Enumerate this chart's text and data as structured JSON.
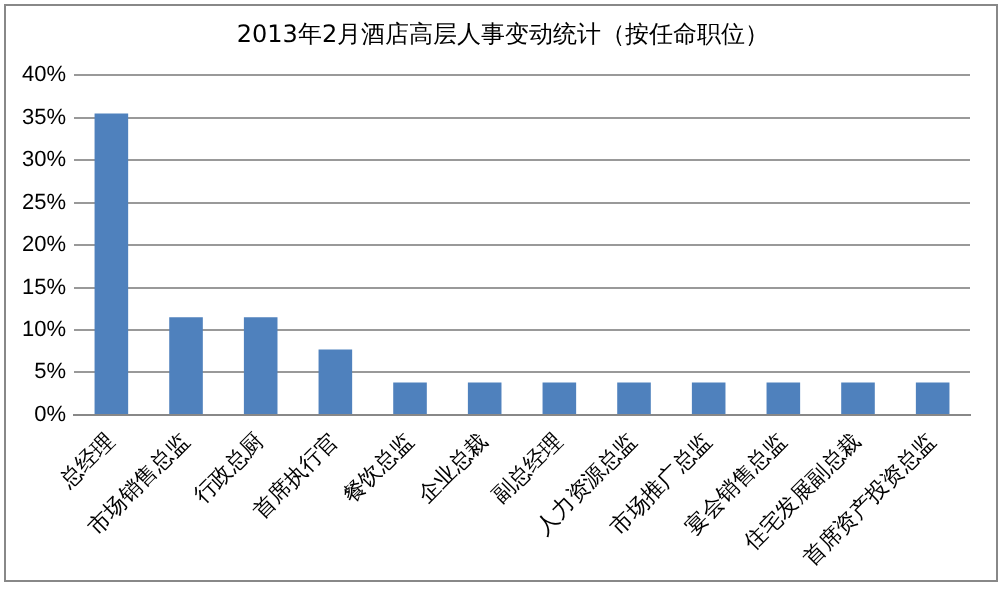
{
  "chart_data": {
    "type": "bar",
    "title": "2013年2月酒店高层人事变动统计（按任命职位）",
    "categories": [
      "总经理",
      "市场销售总监",
      "行政总厨",
      "首席执行官",
      "餐饮总监",
      "企业总裁",
      "副总经理",
      "人力资源总监",
      "市场推广总监",
      "宴会销售总监",
      "住宅发展副总裁",
      "首席资产投资总监"
    ],
    "values": [
      35.5,
      11.5,
      11.5,
      7.7,
      3.8,
      3.8,
      3.8,
      3.8,
      3.8,
      3.8,
      3.8,
      3.8
    ],
    "color": "#4f81bd",
    "ylim": [
      0,
      40
    ],
    "yticks": [
      {
        "value": 0,
        "label": "0%"
      },
      {
        "value": 5,
        "label": "5%"
      },
      {
        "value": 10,
        "label": "10%"
      },
      {
        "value": 15,
        "label": "15%"
      },
      {
        "value": 20,
        "label": "20%"
      },
      {
        "value": 25,
        "label": "25%"
      },
      {
        "value": 30,
        "label": "30%"
      },
      {
        "value": 35,
        "label": "35%"
      },
      {
        "value": 40,
        "label": "40%"
      }
    ],
    "grid": "y",
    "legend": false
  }
}
